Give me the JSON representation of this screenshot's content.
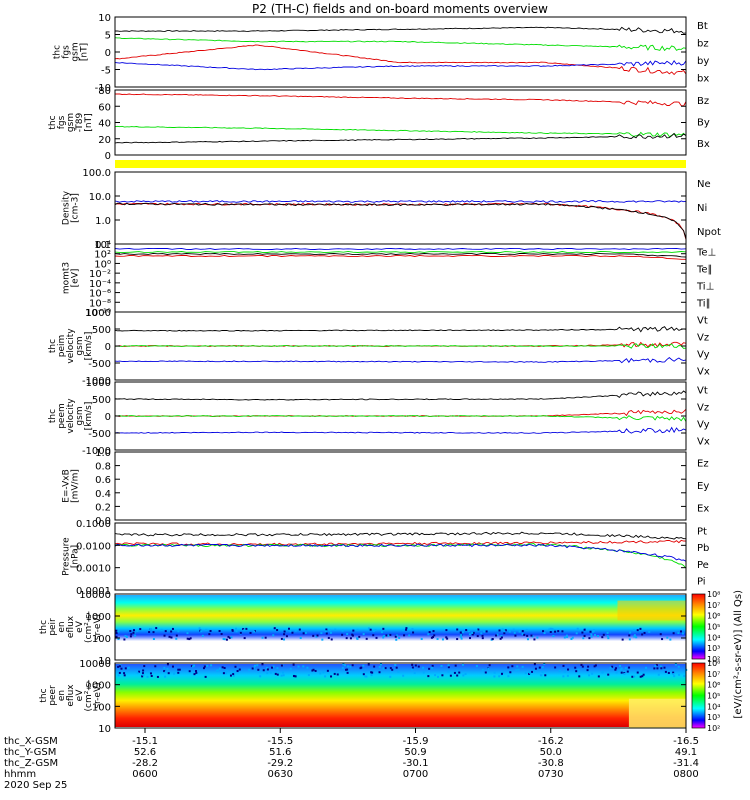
{
  "title": "P2 (TH-C) fields and on-board moments overview",
  "colors": {
    "black": "#000000",
    "red": "#e00000",
    "green": "#00dd00",
    "blue": "#0000e0",
    "yellow": "#ffff00"
  },
  "panels": [
    {
      "key": "fgs_gsm",
      "ylabel": [
        "thc",
        "fgs",
        "gsm",
        "[nT]"
      ],
      "yticks": [
        "10",
        "5",
        "0",
        "-5",
        "-10"
      ],
      "legend": [
        {
          "text": "Bt",
          "color": "black"
        },
        {
          "text": "bz",
          "color": "red"
        },
        {
          "text": "by",
          "color": "green"
        },
        {
          "text": "bx",
          "color": "blue"
        }
      ]
    },
    {
      "key": "fgs_t89",
      "ylabel": [
        "thc",
        "fgs",
        "gsm",
        "-T89",
        "[nT]"
      ],
      "yticks": [
        "80",
        "60",
        "40",
        "20",
        "0"
      ],
      "legend": [
        {
          "text": "Bz",
          "color": "red"
        },
        {
          "text": "By",
          "color": "green"
        },
        {
          "text": "Bx",
          "color": "blue"
        }
      ]
    },
    {
      "key": "flag",
      "ylabel": [],
      "yticks": [],
      "legend": []
    },
    {
      "key": "density",
      "ylabel": [
        "Density",
        "[cm-3]"
      ],
      "yticks": [
        "100.0",
        "10.0",
        "1.0",
        "0.1"
      ],
      "legend": [
        {
          "text": "Ne",
          "color": "red"
        },
        {
          "text": "Ni",
          "color": "black"
        },
        {
          "text": "Npot",
          "color": "blue"
        }
      ]
    },
    {
      "key": "temperature",
      "ylabel": [
        "momt3",
        "[eV]"
      ],
      "yticks": [
        "10⁴",
        "10²",
        "10⁰",
        "10⁻²",
        "10⁻⁴",
        "10⁻⁶",
        "10⁻⁸",
        "10⁻¹⁰"
      ],
      "legend": [
        {
          "text": "Te⊥",
          "color": "red"
        },
        {
          "text": "Te∥",
          "color": "black"
        },
        {
          "text": "Ti⊥",
          "color": "green"
        },
        {
          "text": "Ti∥",
          "color": "green"
        }
      ]
    },
    {
      "key": "peim",
      "ylabel": [
        "thc",
        "peim",
        "velocity",
        "gsm",
        "[km/s]"
      ],
      "yticks": [
        "1000",
        "500",
        "0",
        "-500",
        "-1000"
      ],
      "legend": [
        {
          "text": "Vt",
          "color": "black"
        },
        {
          "text": "Vz",
          "color": "red"
        },
        {
          "text": "Vy",
          "color": "green"
        },
        {
          "text": "Vx",
          "color": "blue"
        }
      ]
    },
    {
      "key": "peem",
      "ylabel": [
        "thc",
        "peem",
        "velocity",
        "gsm",
        "[km/s]"
      ],
      "yticks": [
        "1000",
        "500",
        "0",
        "-500",
        "-1000"
      ],
      "legend": [
        {
          "text": "Vt",
          "color": "black"
        },
        {
          "text": "Vz",
          "color": "red"
        },
        {
          "text": "Vy",
          "color": "green"
        },
        {
          "text": "Vx",
          "color": "blue"
        }
      ]
    },
    {
      "key": "efield",
      "ylabel": [
        "E=-VxB",
        "[mV/m]"
      ],
      "yticks": [
        "1.0",
        "0.8",
        "0.6",
        "0.4",
        "0.2",
        "0.0"
      ],
      "legend": [
        {
          "text": "Ez",
          "color": "red"
        },
        {
          "text": "Ey",
          "color": "green"
        },
        {
          "text": "Ex",
          "color": "blue"
        }
      ]
    },
    {
      "key": "pressure",
      "ylabel": [
        "Pressure",
        "[nPa]"
      ],
      "yticks": [
        "0.1000",
        "0.0100",
        "0.0010",
        "0.0001"
      ],
      "legend": [
        {
          "text": "Pt",
          "color": "black"
        },
        {
          "text": "Pb",
          "color": "red"
        },
        {
          "text": "Pe",
          "color": "green"
        },
        {
          "text": "Pi",
          "color": "blue"
        }
      ]
    },
    {
      "key": "peir",
      "ylabel": [
        "thc",
        "peir",
        "en",
        "eflux",
        "eV",
        "(cm²-s-",
        "sr-eV)"
      ],
      "yticks": [
        "10000",
        "1000",
        "100",
        "10"
      ],
      "legend": []
    },
    {
      "key": "peer",
      "ylabel": [
        "thc",
        "peer",
        "en",
        "eflux",
        "eV",
        "(cm²-s-",
        "sr-eV)"
      ],
      "yticks": [
        "10000",
        "1000",
        "100",
        "10"
      ],
      "legend": []
    }
  ],
  "colorbar": {
    "label": "[eV/(cm²-s-sr-eV)] (All Qs)",
    "ticks_top": [
      "10⁸",
      "10⁷",
      "10⁶",
      "10⁵",
      "10⁴",
      "10³",
      "10²"
    ],
    "ticks_bottom": [
      "10⁸",
      "10⁷",
      "10⁶",
      "10⁵",
      "10⁴",
      "10³",
      "10²"
    ]
  },
  "xaxis": {
    "row_labels": [
      "thc_X-GSM",
      "thc_Y-GSM",
      "thc_Z-GSM",
      "hhmm",
      "2020 Sep 25"
    ],
    "columns": [
      {
        "X": "-15.1",
        "Y": "52.6",
        "Z": "-28.2",
        "hhmm": "0600"
      },
      {
        "X": "-15.5",
        "Y": "51.6",
        "Z": "-29.2",
        "hhmm": "0630"
      },
      {
        "X": "-15.9",
        "Y": "50.9",
        "Z": "-30.1",
        "hhmm": "0700"
      },
      {
        "X": "-16.2",
        "Y": "50.0",
        "Z": "-30.8",
        "hhmm": "0730"
      },
      {
        "X": "-16.5",
        "Y": "49.1",
        "Z": "-31.4",
        "hhmm": "0800"
      }
    ]
  },
  "chart_data": [
    {
      "type": "line",
      "panel": "fgs_gsm",
      "ylim": [
        -10,
        10
      ],
      "x": [
        "0600",
        "0630",
        "0700",
        "0730",
        "0800"
      ],
      "series": [
        {
          "name": "Bt",
          "values": [
            6,
            6,
            6.5,
            7,
            6
          ]
        },
        {
          "name": "bz",
          "values": [
            -2,
            2,
            -3,
            -3,
            -6
          ]
        },
        {
          "name": "by",
          "values": [
            4,
            3,
            3,
            2,
            1
          ]
        },
        {
          "name": "bx",
          "values": [
            -3,
            -5,
            -4,
            -4,
            -3
          ]
        }
      ]
    },
    {
      "type": "line",
      "panel": "fgs_t89",
      "ylim": [
        0,
        80
      ],
      "x": [
        "0600",
        "0630",
        "0700",
        "0730",
        "0800"
      ],
      "series": [
        {
          "name": "Bz",
          "values": [
            75,
            73,
            70,
            68,
            63
          ]
        },
        {
          "name": "By",
          "values": [
            35,
            33,
            30,
            27,
            25
          ]
        },
        {
          "name": "Bx",
          "values": [
            15,
            17,
            19,
            21,
            24
          ]
        }
      ]
    },
    {
      "type": "line",
      "panel": "density",
      "ylim": [
        0.01,
        200
      ],
      "x": [
        "0600",
        "0630",
        "0700",
        "0730",
        "0800"
      ],
      "series": [
        {
          "name": "Ne",
          "values": [
            2.5,
            2.4,
            2.3,
            2.5,
            0.02
          ]
        },
        {
          "name": "Ni",
          "values": [
            2.5,
            2.3,
            2.2,
            2.4,
            0.02
          ]
        },
        {
          "name": "Npot",
          "values": [
            3.5,
            3.5,
            3.5,
            3.5,
            null
          ]
        }
      ]
    },
    {
      "type": "line",
      "panel": "peim",
      "ylim": [
        -1000,
        1000
      ],
      "x": [
        "0600",
        "0630",
        "0700",
        "0730",
        "0800"
      ],
      "series": [
        {
          "name": "Vt",
          "values": [
            450,
            450,
            460,
            470,
            500
          ]
        },
        {
          "name": "Vz",
          "values": [
            0,
            0,
            0,
            0,
            50
          ]
        },
        {
          "name": "Vy",
          "values": [
            0,
            0,
            0,
            0,
            0
          ]
        },
        {
          "name": "Vx",
          "values": [
            -450,
            -450,
            -460,
            -470,
            -400
          ]
        }
      ]
    },
    {
      "type": "line",
      "panel": "peem",
      "ylim": [
        -1000,
        1000
      ],
      "x": [
        "0600",
        "0630",
        "0700",
        "0730",
        "0800"
      ],
      "series": [
        {
          "name": "Vt",
          "values": [
            500,
            480,
            490,
            500,
            700
          ]
        },
        {
          "name": "Vz",
          "values": [
            0,
            0,
            0,
            0,
            150
          ]
        },
        {
          "name": "Vy",
          "values": [
            0,
            0,
            0,
            0,
            -100
          ]
        },
        {
          "name": "Vx",
          "values": [
            -500,
            -480,
            -490,
            -500,
            -400
          ]
        }
      ]
    },
    {
      "type": "line",
      "panel": "pressure",
      "ylim": [
        0.0001,
        0.1
      ],
      "x": [
        "0600",
        "0630",
        "0700",
        "0730",
        "0800"
      ],
      "series": [
        {
          "name": "Pt",
          "values": [
            0.03,
            0.03,
            0.032,
            0.035,
            0.02
          ]
        },
        {
          "name": "Pb",
          "values": [
            0.012,
            0.011,
            0.012,
            0.013,
            0.015
          ]
        },
        {
          "name": "Pe",
          "values": [
            0.01,
            0.01,
            0.01,
            0.011,
            0.001
          ]
        },
        {
          "name": "Pi",
          "values": [
            0.01,
            0.01,
            0.01,
            0.01,
            0.002
          ]
        }
      ]
    }
  ]
}
